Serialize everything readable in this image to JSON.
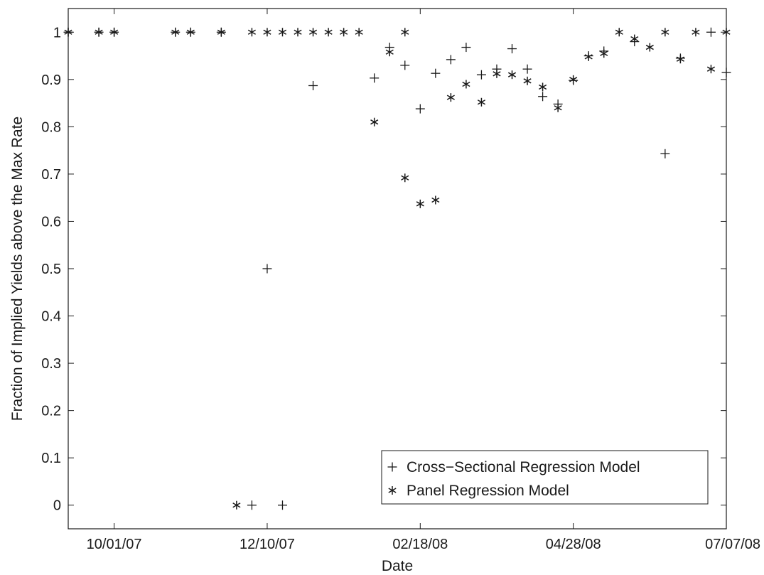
{
  "chart_data": {
    "type": "scatter",
    "xlabel": "Date",
    "ylabel": "Fraction of Implied Yields above the Max Rate",
    "x_type": "date",
    "xlim": [
      "2007-09-10",
      "2008-07-07"
    ],
    "ylim": [
      -0.05,
      1.05
    ],
    "x_ticks": [
      "2007-10-01",
      "2007-12-10",
      "2008-02-18",
      "2008-04-28",
      "2008-07-07"
    ],
    "x_tick_labels": [
      "10/01/07",
      "12/10/07",
      "02/18/08",
      "04/28/08",
      "07/07/08"
    ],
    "y_ticks": [
      0,
      0.1,
      0.2,
      0.3,
      0.4,
      0.5,
      0.6,
      0.7,
      0.8,
      0.9,
      1
    ],
    "y_tick_labels": [
      "0",
      "0.1",
      "0.2",
      "0.3",
      "0.4",
      "0.5",
      "0.6",
      "0.7",
      "0.8",
      "0.9",
      "1"
    ],
    "grid": false,
    "legend_position": "bottom-right",
    "series": [
      {
        "name": "Cross−Sectional Regression Model",
        "marker": "plus",
        "color": "#1a1a1a",
        "points": [
          [
            "2007-09-10",
            1
          ],
          [
            "2007-09-24",
            1
          ],
          [
            "2007-10-01",
            1
          ],
          [
            "2007-10-29",
            1
          ],
          [
            "2007-11-05",
            1
          ],
          [
            "2007-11-19",
            1
          ],
          [
            "2007-12-03",
            0
          ],
          [
            "2007-12-10",
            0.5
          ],
          [
            "2007-12-17",
            0
          ],
          [
            "2007-12-31",
            0.887
          ],
          [
            "2008-01-28",
            0.903
          ],
          [
            "2008-02-04",
            0.968
          ],
          [
            "2008-02-11",
            0.93
          ],
          [
            "2008-02-18",
            0.838
          ],
          [
            "2008-02-25",
            0.913
          ],
          [
            "2008-03-03",
            0.942
          ],
          [
            "2008-03-10",
            0.968
          ],
          [
            "2008-03-17",
            0.91
          ],
          [
            "2008-03-24",
            0.922
          ],
          [
            "2008-03-31",
            0.965
          ],
          [
            "2008-04-07",
            0.922
          ],
          [
            "2008-04-14",
            0.864
          ],
          [
            "2008-04-21",
            0.848
          ],
          [
            "2008-04-28",
            0.898
          ],
          [
            "2008-05-05",
            0.95
          ],
          [
            "2008-05-12",
            0.96
          ],
          [
            "2008-05-26",
            0.98
          ],
          [
            "2008-06-09",
            0.743
          ],
          [
            "2008-06-16",
            0.945
          ],
          [
            "2008-06-30",
            1
          ],
          [
            "2008-07-07",
            0.915
          ]
        ]
      },
      {
        "name": "Panel Regression Model",
        "marker": "asterisk",
        "color": "#1a1a1a",
        "points": [
          [
            "2007-09-10",
            1
          ],
          [
            "2007-09-24",
            1
          ],
          [
            "2007-10-01",
            1
          ],
          [
            "2007-10-29",
            1
          ],
          [
            "2007-11-05",
            1
          ],
          [
            "2007-11-19",
            1
          ],
          [
            "2007-11-26",
            0
          ],
          [
            "2007-12-03",
            1
          ],
          [
            "2007-12-10",
            1
          ],
          [
            "2007-12-17",
            1
          ],
          [
            "2007-12-24",
            1
          ],
          [
            "2007-12-31",
            1
          ],
          [
            "2008-01-07",
            1
          ],
          [
            "2008-01-14",
            1
          ],
          [
            "2008-01-21",
            1
          ],
          [
            "2008-01-28",
            0.81
          ],
          [
            "2008-02-04",
            0.958
          ],
          [
            "2008-02-11",
            1
          ],
          [
            "2008-02-18",
            0.637
          ],
          [
            "2008-02-11",
            0.692
          ],
          [
            "2008-02-25",
            0.645
          ],
          [
            "2008-03-03",
            0.862
          ],
          [
            "2008-03-10",
            0.89
          ],
          [
            "2008-03-17",
            0.852
          ],
          [
            "2008-03-24",
            0.912
          ],
          [
            "2008-03-31",
            0.91
          ],
          [
            "2008-04-07",
            0.897
          ],
          [
            "2008-04-14",
            0.884
          ],
          [
            "2008-04-21",
            0.84
          ],
          [
            "2008-04-28",
            0.9
          ],
          [
            "2008-05-05",
            0.948
          ],
          [
            "2008-05-12",
            0.955
          ],
          [
            "2008-05-19",
            1
          ],
          [
            "2008-05-26",
            0.986
          ],
          [
            "2008-06-02",
            0.968
          ],
          [
            "2008-06-09",
            1
          ],
          [
            "2008-06-16",
            0.943
          ],
          [
            "2008-06-23",
            1
          ],
          [
            "2008-06-30",
            0.922
          ],
          [
            "2008-07-07",
            1
          ]
        ]
      }
    ]
  }
}
